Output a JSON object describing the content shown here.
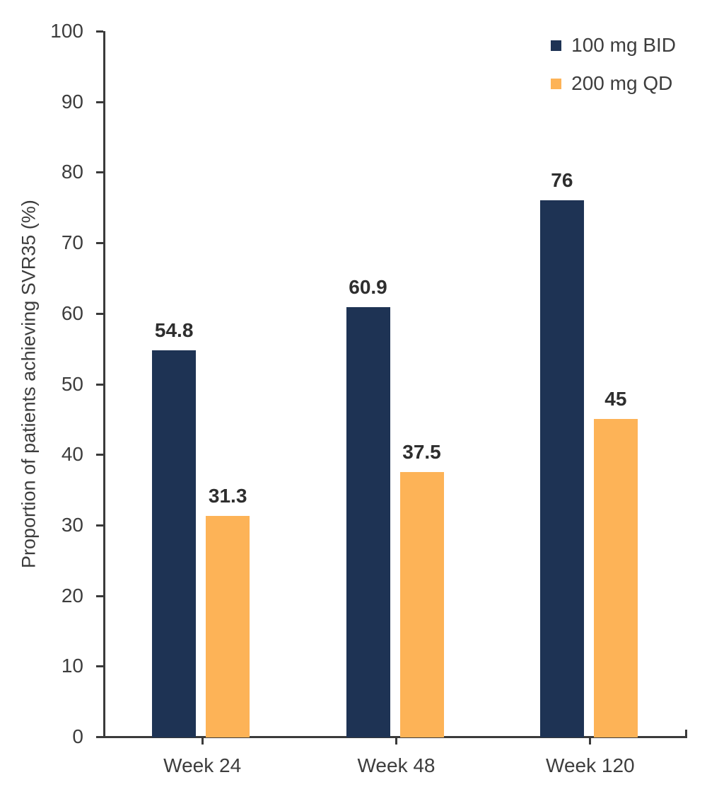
{
  "chart_data": {
    "type": "bar",
    "title": "",
    "categories": [
      "Week 24",
      "Week 48",
      "Week 120"
    ],
    "series": [
      {
        "name": "100 mg BID",
        "color": "#1E3354",
        "values": [
          54.8,
          60.9,
          76
        ],
        "value_labels": [
          "54.8",
          "60.9",
          "76"
        ]
      },
      {
        "name": "200 mg QD",
        "color": "#FDB357",
        "values": [
          31.3,
          37.5,
          45
        ],
        "value_labels": [
          "31.3",
          "37.5",
          "45"
        ]
      }
    ],
    "xlabel": "",
    "ylabel": "Proportion of patients achieving SVR35 (%)",
    "ylim": [
      0,
      100
    ],
    "yticks": [
      "0",
      "10",
      "20",
      "30",
      "40",
      "50",
      "60",
      "70",
      "80",
      "90",
      "100"
    ],
    "grid": false,
    "legend_position": "top-right",
    "colors": {
      "axis": "#3A3A3A",
      "tick_label": "#3D3D3D",
      "value_label": "#2E2E2E",
      "background": "#FFFFFF"
    }
  }
}
